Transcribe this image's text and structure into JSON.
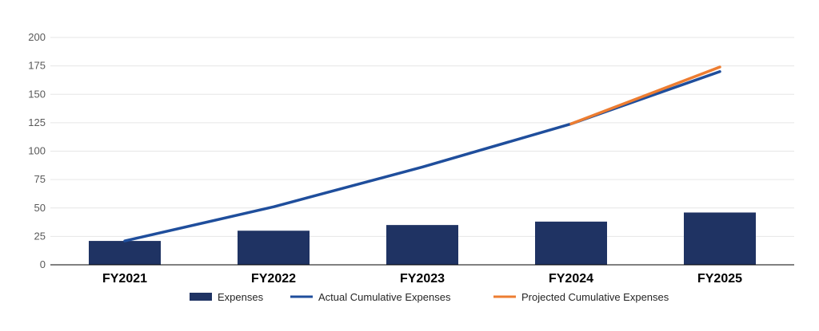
{
  "chart_data": {
    "type": "bar",
    "title": "",
    "xlabel": "",
    "ylabel": "",
    "ylim": [
      0,
      200
    ],
    "yticks": [
      0,
      25,
      50,
      75,
      100,
      125,
      150,
      175,
      200
    ],
    "grid": true,
    "legend_position": "bottom",
    "categories": [
      "FY2021",
      "FY2022",
      "FY2023",
      "FY2024",
      "FY2025"
    ],
    "series": [
      {
        "name": "Expenses",
        "type": "bar",
        "color": "#1f3363",
        "values": [
          21,
          30,
          35,
          38,
          46
        ]
      },
      {
        "name": "Actual Cumulative Expenses",
        "type": "line",
        "color": "#1f4e9c",
        "values": [
          21,
          51,
          86,
          124,
          170
        ]
      },
      {
        "name": "Projected Cumulative Expenses",
        "type": "line",
        "color": "#ed7d31",
        "values": [
          null,
          null,
          null,
          124,
          174
        ]
      }
    ]
  }
}
